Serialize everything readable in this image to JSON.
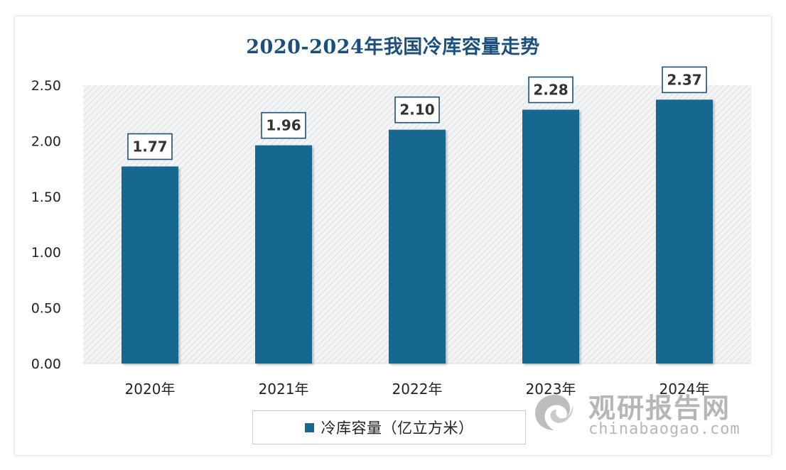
{
  "chart_data": {
    "type": "bar",
    "title": "2020-2024年我国冷库容量走势",
    "categories": [
      "2020年",
      "2021年",
      "2022年",
      "2023年",
      "2024年"
    ],
    "series": [
      {
        "name": "冷库容量（亿立方米）",
        "values": [
          1.77,
          1.96,
          2.1,
          2.28,
          2.37
        ],
        "color": "#176891"
      }
    ],
    "data_labels": [
      "1.77",
      "1.96",
      "2.10",
      "2.28",
      "2.37"
    ],
    "y_ticks": [
      "0.00",
      "0.50",
      "1.00",
      "1.50",
      "2.00",
      "2.50"
    ],
    "ylim": [
      0,
      2.5
    ],
    "legend_position": "bottom",
    "plot_background": "diagonal-hatch"
  },
  "watermark": {
    "name": "观研报告网",
    "url": "chinabaogao.com",
    "logo_icon": "swirl-logo-icon"
  }
}
